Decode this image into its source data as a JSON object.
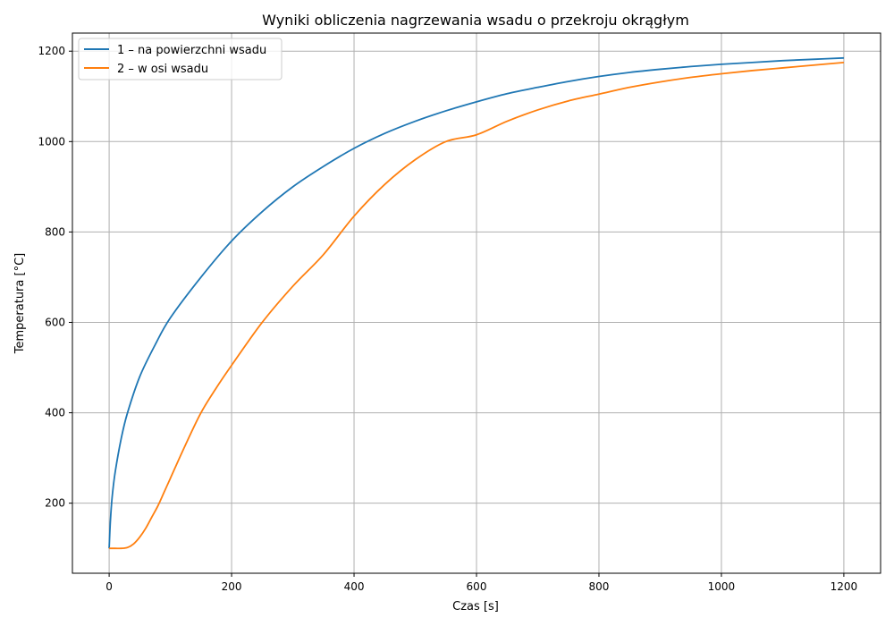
{
  "chart_data": {
    "type": "line",
    "title": "Wyniki obliczenia nagrzewania wsadu o przekroju okrągłym",
    "xlabel": "Czas [s]",
    "ylabel": "Temperatura [°C]",
    "xlim": [
      -60,
      1260
    ],
    "ylim": [
      45,
      1240
    ],
    "xticks": [
      0,
      200,
      400,
      600,
      800,
      1000,
      1200
    ],
    "yticks": [
      200,
      400,
      600,
      800,
      1000,
      1200
    ],
    "grid": true,
    "legend_position": "top-left",
    "series": [
      {
        "name": "1 – na powierzchni wsadu",
        "color": "#1f77b4",
        "x": [
          0,
          2,
          5,
          10,
          20,
          30,
          50,
          75,
          100,
          150,
          200,
          250,
          300,
          350,
          400,
          450,
          500,
          550,
          600,
          650,
          700,
          750,
          800,
          850,
          900,
          950,
          1000,
          1050,
          1100,
          1150,
          1200
        ],
        "y": [
          100,
          160,
          215,
          270,
          345,
          400,
          480,
          550,
          610,
          700,
          780,
          845,
          900,
          945,
          985,
          1018,
          1045,
          1068,
          1088,
          1106,
          1120,
          1133,
          1144,
          1153,
          1160,
          1166,
          1171,
          1175,
          1179,
          1182,
          1185
        ]
      },
      {
        "name": "2 – w osi wsadu",
        "color": "#ff7f0e",
        "x": [
          0,
          10,
          20,
          30,
          40,
          50,
          60,
          70,
          80,
          90,
          100,
          125,
          150,
          175,
          200,
          250,
          300,
          350,
          400,
          450,
          500,
          550,
          600,
          650,
          700,
          750,
          800,
          850,
          900,
          950,
          1000,
          1050,
          1100,
          1150,
          1200
        ],
        "y": [
          100,
          100,
          100,
          102,
          110,
          125,
          145,
          170,
          195,
          225,
          255,
          330,
          400,
          455,
          505,
          600,
          680,
          750,
          835,
          905,
          960,
          1000,
          1015,
          1045,
          1070,
          1090,
          1105,
          1120,
          1132,
          1142,
          1150,
          1157,
          1163,
          1169,
          1175
        ]
      }
    ]
  }
}
